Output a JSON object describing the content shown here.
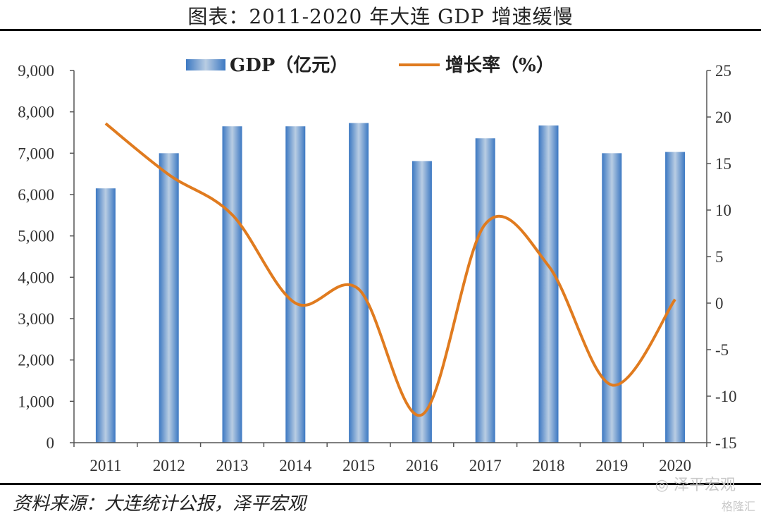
{
  "title": "图表：2011-2020 年大连 GDP 增速缓慢",
  "source": "资料来源：大连统计公报，泽平宏观",
  "watermark": "泽平宏观",
  "watermark2": "格隆汇",
  "colors": {
    "bar": "#3c78c2",
    "bar_highlight": "#b9cde3",
    "line": "#e07b1f",
    "axis": "#555555"
  },
  "icons": {
    "watermark_icon": "wechat-icon"
  },
  "chart_data": {
    "type": "bar+line",
    "categories": [
      "2011",
      "2012",
      "2013",
      "2014",
      "2015",
      "2016",
      "2017",
      "2018",
      "2019",
      "2020"
    ],
    "series": [
      {
        "name": "GDP（亿元）",
        "type": "bar",
        "axis": "left",
        "values": [
          6150,
          7000,
          7650,
          7650,
          7730,
          6810,
          7360,
          7670,
          7000,
          7030
        ]
      },
      {
        "name": "增长率（%）",
        "type": "line",
        "axis": "right",
        "values": [
          19.3,
          13.8,
          9.5,
          0,
          1.5,
          -12,
          8.5,
          4.0,
          -8.8,
          0.4
        ]
      }
    ],
    "y_left": {
      "min": 0,
      "max": 9000,
      "step": 1000,
      "tick_labels": [
        "0",
        "1,000",
        "2,000",
        "3,000",
        "4,000",
        "5,000",
        "6,000",
        "7,000",
        "8,000",
        "9,000"
      ]
    },
    "y_right": {
      "min": -15,
      "max": 25,
      "step": 5,
      "tick_labels": [
        "-15",
        "-10",
        "-5",
        "0",
        "5",
        "10",
        "15",
        "20",
        "25"
      ]
    },
    "legend": {
      "position": "top",
      "items": [
        "GDP（亿元）",
        "增长率（%）"
      ]
    },
    "grid": false
  }
}
